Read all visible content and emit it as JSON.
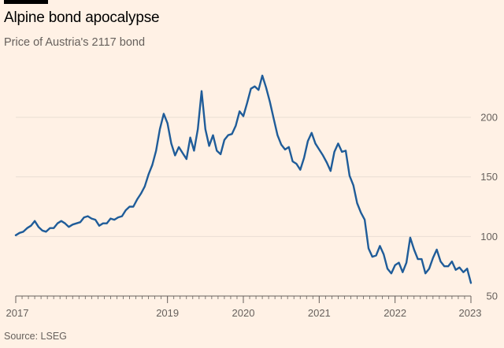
{
  "header": {
    "title": "Alpine bond apocalypse",
    "subtitle": "Price of Austria's 2117 bond"
  },
  "footer": {
    "source": "Source: LSEG"
  },
  "colors": {
    "background": "#FFF1E5",
    "line": "#1F5C99",
    "grid": "#E9DED3",
    "axis": "#66605C",
    "text": "#66605C"
  },
  "chart_data": {
    "type": "line",
    "title": "Alpine bond apocalypse",
    "subtitle": "Price of Austria's 2117 bond",
    "xlabel": "",
    "ylabel": "",
    "xlim": [
      2017.0,
      2023.0
    ],
    "ylim": [
      50,
      240
    ],
    "x_ticks": [
      2017,
      2019,
      2020,
      2021,
      2022,
      2023
    ],
    "x_tick_labels": [
      "2017",
      "2019",
      "2020",
      "2021",
      "2022",
      "2023"
    ],
    "y_ticks": [
      50,
      100,
      150,
      200
    ],
    "y_tick_labels": [
      "50",
      "100",
      "150",
      "200"
    ],
    "grid": "horizontal",
    "legend": "none",
    "series": [
      {
        "name": "Price of Austria's 2117 bond",
        "x": [
          2017.0,
          2017.05,
          2017.1,
          2017.15,
          2017.2,
          2017.25,
          2017.3,
          2017.35,
          2017.4,
          2017.45,
          2017.5,
          2017.55,
          2017.6,
          2017.65,
          2017.7,
          2017.75,
          2017.8,
          2017.85,
          2017.9,
          2017.95,
          2018.0,
          2018.05,
          2018.1,
          2018.15,
          2018.2,
          2018.25,
          2018.3,
          2018.35,
          2018.4,
          2018.45,
          2018.5,
          2018.55,
          2018.6,
          2018.65,
          2018.7,
          2018.75,
          2018.8,
          2018.85,
          2018.9,
          2018.95,
          2019.0,
          2019.05,
          2019.1,
          2019.15,
          2019.2,
          2019.25,
          2019.3,
          2019.35,
          2019.4,
          2019.45,
          2019.5,
          2019.55,
          2019.6,
          2019.65,
          2019.7,
          2019.75,
          2019.8,
          2019.85,
          2019.9,
          2019.95,
          2020.0,
          2020.05,
          2020.1,
          2020.15,
          2020.2,
          2020.25,
          2020.3,
          2020.35,
          2020.4,
          2020.45,
          2020.5,
          2020.55,
          2020.6,
          2020.65,
          2020.7,
          2020.75,
          2020.8,
          2020.85,
          2020.9,
          2020.95,
          2021.0,
          2021.05,
          2021.1,
          2021.15,
          2021.2,
          2021.25,
          2021.3,
          2021.35,
          2021.4,
          2021.45,
          2021.5,
          2021.55,
          2021.6,
          2021.65,
          2021.7,
          2021.75,
          2021.8,
          2021.85,
          2021.9,
          2021.95,
          2022.0,
          2022.05,
          2022.1,
          2022.15,
          2022.2,
          2022.25,
          2022.3,
          2022.35,
          2022.4,
          2022.45,
          2022.5,
          2022.55,
          2022.6,
          2022.65,
          2022.7,
          2022.75,
          2022.8,
          2022.85,
          2022.9,
          2022.95,
          2023.0
        ],
        "values": [
          101,
          103,
          104,
          107,
          109,
          113,
          108,
          105,
          104,
          107,
          107,
          111,
          113,
          111,
          108,
          110,
          111,
          112,
          116,
          117,
          115,
          114,
          109,
          111,
          111,
          115,
          114,
          116,
          117,
          122,
          125,
          125,
          131,
          136,
          142,
          152,
          160,
          172,
          190,
          203,
          195,
          178,
          168,
          175,
          170,
          165,
          183,
          172,
          190,
          222,
          190,
          176,
          185,
          172,
          169,
          181,
          185,
          186,
          193,
          205,
          201,
          212,
          224,
          226,
          223,
          235,
          225,
          213,
          199,
          185,
          177,
          173,
          175,
          163,
          161,
          156,
          166,
          180,
          187,
          178,
          173,
          168,
          162,
          155,
          171,
          178,
          171,
          172,
          151,
          143,
          128,
          120,
          114,
          90,
          83,
          84,
          92,
          85,
          73,
          69,
          76,
          78,
          70,
          78,
          99,
          89,
          81,
          81,
          69,
          73,
          82,
          89,
          79,
          75,
          75,
          79,
          72,
          74,
          70,
          73,
          61
        ]
      }
    ]
  }
}
